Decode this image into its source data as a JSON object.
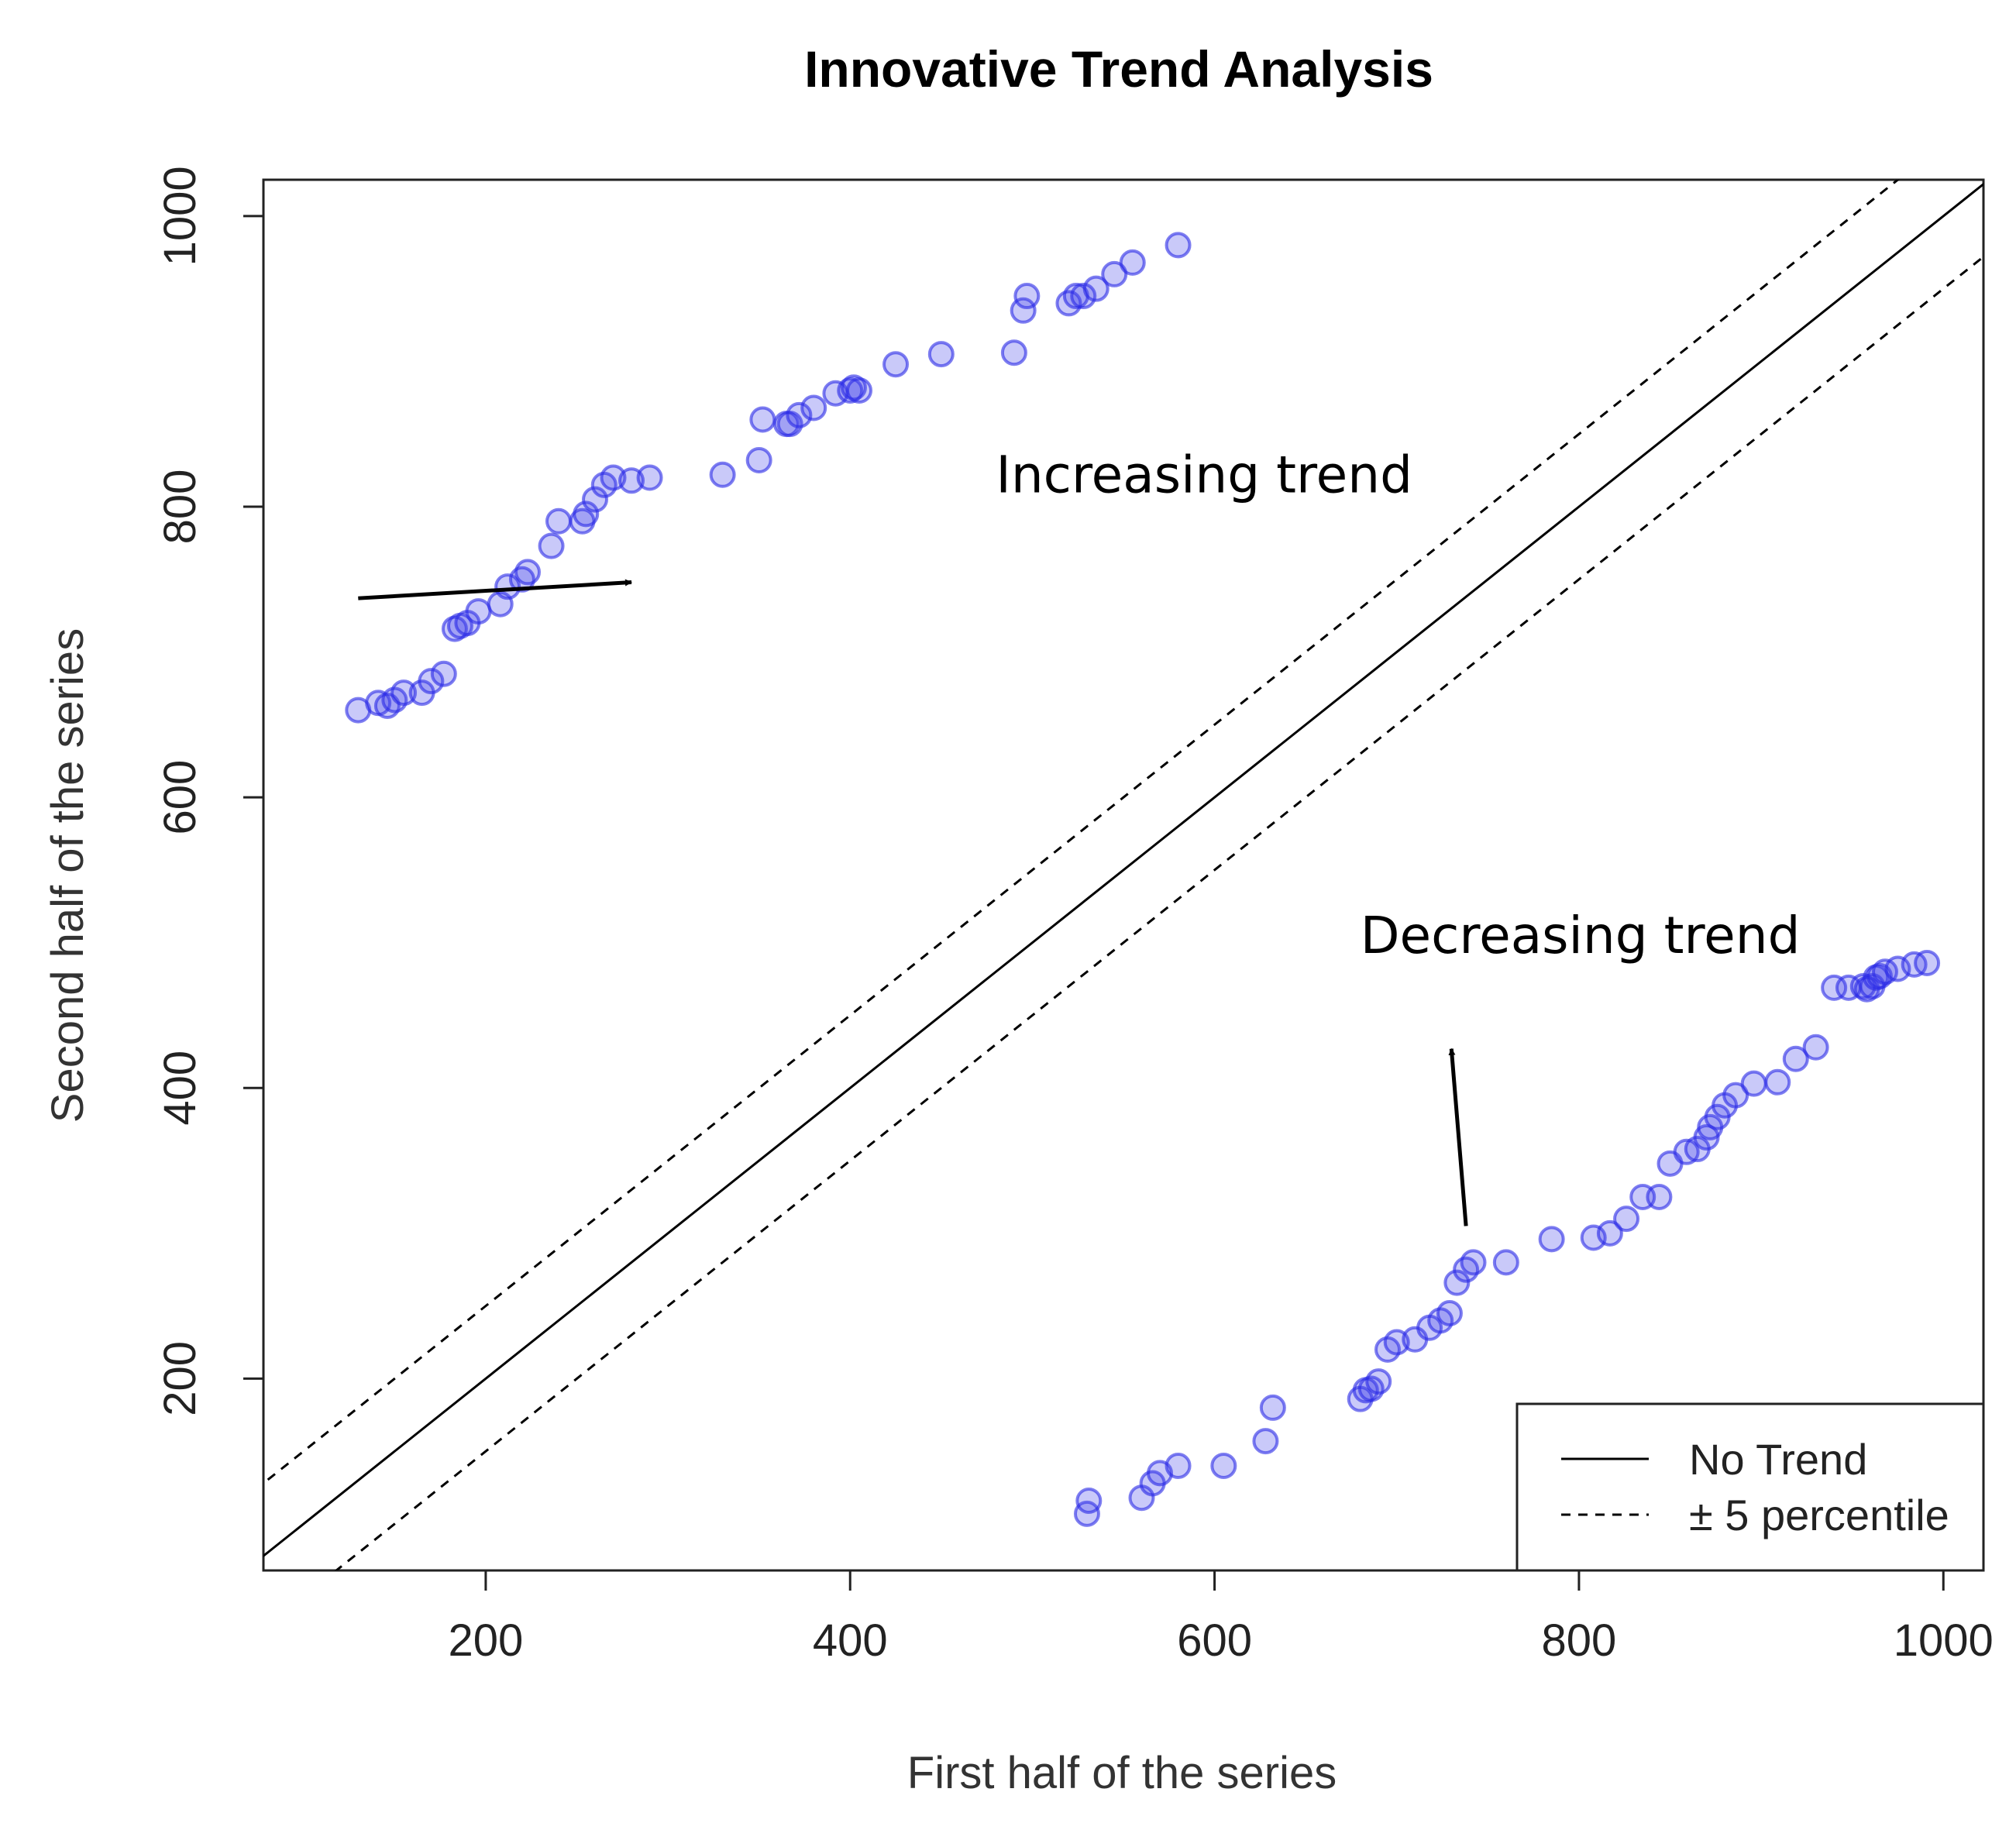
{
  "chart_data": {
    "type": "scatter",
    "title": "Innovative Trend Analysis",
    "xlabel": "First half of the series",
    "ylabel": "Second half of the series",
    "xlim": [
      78,
      1022
    ],
    "ylim": [
      68,
      1025
    ],
    "xticks": [
      200,
      400,
      600,
      800,
      1000
    ],
    "yticks": [
      200,
      400,
      600,
      800,
      1000
    ],
    "xtick_labels": [
      "200",
      "400",
      "600",
      "800",
      "1000"
    ],
    "ytick_labels": [
      "200",
      "400",
      "600",
      "800",
      "1000"
    ],
    "lines": [
      {
        "name": "No Trend",
        "style": "solid",
        "slope": 1,
        "intercept": 0
      },
      {
        "name": "+5 percentile",
        "style": "dashed",
        "slope": 1,
        "intercept": 50
      },
      {
        "name": "-5 percentile",
        "style": "dashed",
        "slope": 1,
        "intercept": -50
      }
    ],
    "legend": {
      "position": "bottom-right",
      "entries": [
        {
          "label": "No Trend",
          "style": "solid"
        },
        {
          "label": "± 5 percentile",
          "style": "dashed"
        }
      ]
    },
    "point_color": "#3c3ceb",
    "annotations": [
      {
        "text": "Increasing trend",
        "x": 480,
        "y": 810,
        "arrow_from": [
          130,
          737
        ],
        "arrow_to": [
          280,
          748
        ]
      },
      {
        "text": "Decreasing trend",
        "x": 680,
        "y": 493,
        "arrow_from": [
          738,
          305
        ],
        "arrow_to": [
          730,
          427
        ]
      }
    ],
    "series": [
      {
        "name": "Increasing trend",
        "x": [
          130,
          141,
          146,
          150,
          155,
          165,
          170,
          177,
          183,
          186,
          190,
          196,
          208,
          212,
          220,
          223,
          236,
          240,
          253,
          255,
          260,
          265,
          270,
          280,
          290,
          330,
          350,
          352,
          365,
          367,
          372,
          380,
          392,
          400,
          402,
          405,
          425,
          450,
          490,
          495,
          497,
          520,
          524,
          528,
          535,
          545,
          555,
          580
        ],
        "y": [
          660,
          665,
          663,
          667,
          672,
          672,
          680,
          685,
          716,
          718,
          720,
          728,
          733,
          745,
          750,
          755,
          773,
          790,
          790,
          795,
          805,
          815,
          820,
          818,
          820,
          822,
          832,
          860,
          857,
          857,
          863,
          868,
          878,
          880,
          882,
          880,
          898,
          905,
          906,
          935,
          945,
          940,
          945,
          945,
          950,
          960,
          968,
          980
        ]
      },
      {
        "name": "Decreasing trend",
        "x": [
          530,
          531,
          560,
          566,
          570,
          580,
          605,
          628,
          632,
          680,
          683,
          686,
          690,
          695,
          700,
          710,
          718,
          724,
          729,
          733,
          738,
          742,
          760,
          785,
          808,
          817,
          826,
          835,
          844,
          850,
          859,
          865,
          870,
          872,
          876,
          880,
          886,
          896,
          909,
          919,
          930,
          940,
          948,
          956,
          958,
          961,
          963,
          965,
          968,
          975,
          984,
          991
        ],
        "y": [
          107,
          116,
          118,
          128,
          135,
          140,
          140,
          157,
          180,
          186,
          192,
          193,
          198,
          220,
          225,
          227,
          235,
          240,
          245,
          266,
          275,
          280,
          280,
          296,
          297,
          300,
          310,
          325,
          325,
          348,
          356,
          358,
          366,
          373,
          380,
          388,
          395,
          403,
          404,
          420,
          428,
          469,
          469,
          470,
          468,
          470,
          476,
          477,
          480,
          482,
          485,
          486
        ]
      }
    ]
  }
}
